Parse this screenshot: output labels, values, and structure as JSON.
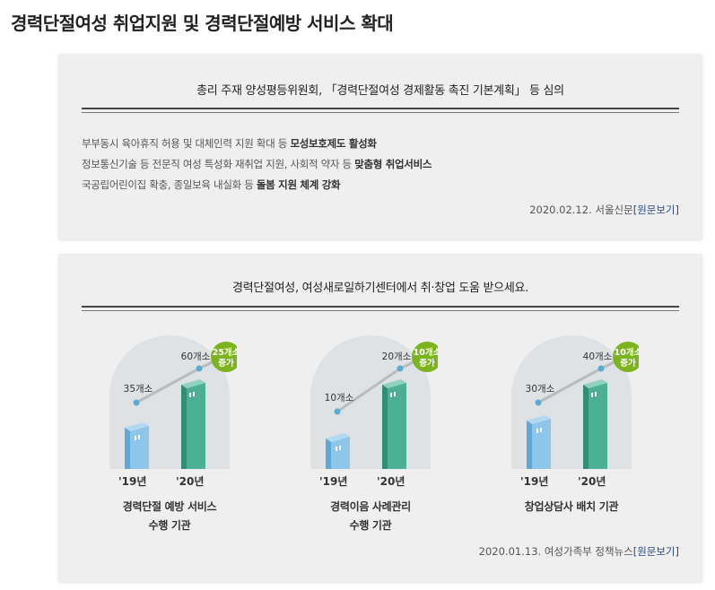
{
  "page": {
    "title": "경력단절여성 취업지원 및 경력단절예방 서비스 확대"
  },
  "article1": {
    "headline": "총리 주재 양성평등위원회, 「경력단절여성 경제활동 촉진 기본계획」 등 심의",
    "bullets": [
      {
        "text": "부부동시 육아휴직 허용 및 대체인력 지원 확대 등 ",
        "bold": "모성보호제도 활성화"
      },
      {
        "text": "정보통신기술 등 전문직 여성 특성화 재취업 지원, 사회적 약자 등 ",
        "bold": "맞춤형 취업서비스"
      },
      {
        "text": "국공립어린이집 확충, 종일보육 내실화 등 ",
        "bold": "돌봄 지원 체계 강화"
      }
    ],
    "source_text": "2020.02.12. 서울신문",
    "source_link": "[원문보기]"
  },
  "article2": {
    "headline": "경력단절여성, 여성새로일하기센터에서 취·창업 도움 받으세요.",
    "infographics": [
      {
        "label_line1": "경력단절 예방 서비스",
        "label_line2": "수행 기관",
        "y2019_label": "35개소",
        "y2020_label": "60개소",
        "badge_line1": "25개소",
        "badge_line2": "증가",
        "x2019": "'19년",
        "x2020": "'20년",
        "value_2019": 35,
        "value_2020": 60
      },
      {
        "label_line1": "경력이음 사례관리",
        "label_line2": "수행 기관",
        "y2019_label": "10개소",
        "y2020_label": "20개소",
        "badge_line1": "10개소",
        "badge_line2": "증가",
        "x2019": "'19년",
        "x2020": "'20년",
        "value_2019": 10,
        "value_2020": 20
      },
      {
        "label_line1": "창업상담사 배치 기관",
        "label_line2": "",
        "y2019_label": "30개소",
        "y2020_label": "40개소",
        "badge_line1": "10개소",
        "badge_line2": "증가",
        "x2019": "'19년",
        "x2020": "'20년",
        "value_2019": 30,
        "value_2020": 40
      }
    ],
    "source_text": "2020.01.13. 여성가족부 정책뉴스",
    "source_link": "[원문보기]"
  },
  "colors": {
    "arch": "#dfe2e5",
    "building_2019": "#8ec5ea",
    "building_2019_dark": "#5fa7d6",
    "building_2020": "#4cb095",
    "building_2020_dark": "#2f8e74",
    "badge": "#7ab51d",
    "trend_line": "#b9bcbf",
    "point": "#5aaad6",
    "link": "#2b4a8a"
  }
}
